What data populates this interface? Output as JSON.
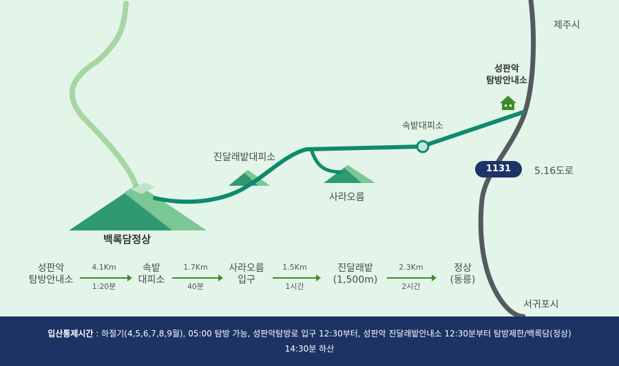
{
  "map": {
    "places": {
      "jeju_city": "제주시",
      "seogwipo_city": "서귀포시",
      "seongpanak_office": [
        "성판악",
        "탐방안내소"
      ],
      "sokbat_shelter": "속밭대피소",
      "jindallaebat_shelter": "진달래밭대피소",
      "sara_oreum": "사라오름",
      "baengnokdam_summit": "백록담정상"
    },
    "road": {
      "number": "1131",
      "name": "5.16도로"
    }
  },
  "route": {
    "stops": [
      {
        "lines": [
          "성판악",
          "탐방안내소"
        ]
      },
      {
        "lines": [
          "속밭",
          "대피소"
        ]
      },
      {
        "lines": [
          "사라오름",
          "입구"
        ]
      },
      {
        "lines": [
          "진달래밭",
          "(1,500m)"
        ]
      },
      {
        "lines": [
          "정상",
          "(동릉)"
        ]
      }
    ],
    "segments": [
      {
        "distance": "4.1Km",
        "time": "1:20분"
      },
      {
        "distance": "1.7Km",
        "time": "40분"
      },
      {
        "distance": "1.5Km",
        "time": "1시간"
      },
      {
        "distance": "2.3Km",
        "time": "2시간"
      }
    ]
  },
  "footer": {
    "label": "입산통제시간",
    "text_line1": " : 하절기(4,5,6,7,8,9월), 05:00 탐방 가능, 성판악탐방로 입구 12:30부터, 성판악 진달래밭안내소 12:30분부터 탐방제한/백록담(정상)",
    "text_line2": "14:30분 하산"
  },
  "colors": {
    "background": "#e3f4e9",
    "trail": "#0f8a6a",
    "road": "#555a60",
    "footer": "#1c3364"
  }
}
